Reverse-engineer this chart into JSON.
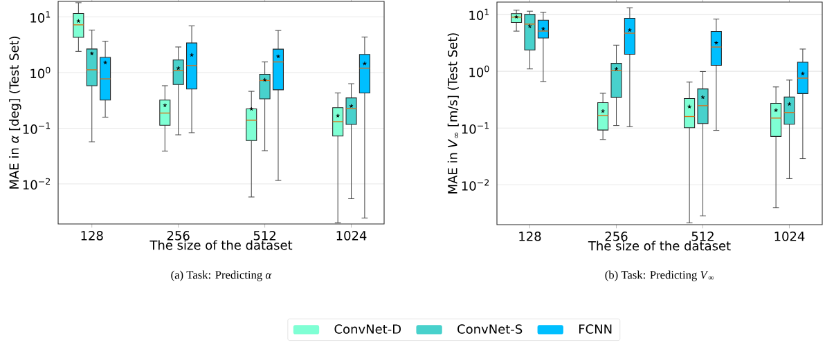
{
  "chart_data": [
    {
      "type": "box",
      "title": "(a) Task: Predicting *α*",
      "xlabel": "The size of the dataset",
      "ylabel": "MAE in *α* [deg] (Test Set)",
      "categories": [
        "128",
        "256",
        "512",
        "1024"
      ],
      "log": true,
      "grid": "y",
      "legend": "bottom",
      "ylim": [
        0.0019,
        19
      ],
      "yticks": [
        {
          "value": 0.01,
          "label": "10$^{−2}$"
        },
        {
          "value": 0.1,
          "label": "10$^{−1}$"
        },
        {
          "value": 1,
          "label": "10$^{0}$"
        },
        {
          "value": 10,
          "label": "10$^{1}$"
        }
      ],
      "series": [
        {
          "name": "ConvNet-D",
          "color": "#7fffd4",
          "boxes": [
            {
              "low": 2.4,
              "q1": 4.3,
              "median": 7.2,
              "q3": 11.5,
              "high": 18,
              "mean": 8.4
            },
            {
              "low": 0.0387,
              "q1": 0.113,
              "median": 0.187,
              "q3": 0.32,
              "high": 0.58,
              "mean": 0.258
            },
            {
              "low": 0.0058,
              "q1": 0.06,
              "median": 0.139,
              "q3": 0.222,
              "high": 0.46,
              "mean": 0.222
            },
            {
              "low": 0.002,
              "q1": 0.0725,
              "median": 0.131,
              "q3": 0.234,
              "high": 0.43,
              "mean": 0.168
            }
          ]
        },
        {
          "name": "ConvNet-S",
          "color": "#48d1cc",
          "boxes": [
            {
              "low": 0.057,
              "q1": 0.58,
              "median": 1.12,
              "q3": 2.65,
              "high": 5.8,
              "mean": 2.2
            },
            {
              "low": 0.076,
              "q1": 0.61,
              "median": 1.08,
              "q3": 1.68,
              "high": 2.88,
              "mean": 1.2
            },
            {
              "low": 0.0394,
              "q1": 0.336,
              "median": 0.72,
              "q3": 0.93,
              "high": 1.55,
              "mean": 0.74
            },
            {
              "low": 0.0054,
              "q1": 0.117,
              "median": 0.224,
              "q3": 0.35,
              "high": 0.63,
              "mean": 0.25
            }
          ]
        },
        {
          "name": "FCNN",
          "color": "#00bfff",
          "boxes": [
            {
              "low": 0.158,
              "q1": 0.32,
              "median": 0.77,
              "q3": 1.87,
              "high": 3.65,
              "mean": 1.51
            },
            {
              "low": 0.083,
              "q1": 0.506,
              "median": 1.33,
              "q3": 3.4,
              "high": 6.9,
              "mean": 2.07
            },
            {
              "low": 0.0115,
              "q1": 0.49,
              "median": 1.55,
              "q3": 2.63,
              "high": 5.7,
              "mean": 1.95
            },
            {
              "low": 0.00243,
              "q1": 0.43,
              "median": 1.2,
              "q3": 2.11,
              "high": 4.34,
              "mean": 1.45
            }
          ]
        }
      ]
    },
    {
      "type": "box",
      "title": "(b) Task: Predicting *V*$_{∞}$",
      "xlabel": "The size of the dataset",
      "ylabel": "MAE in *V*$_{∞}$ [m/s] (Test Set)",
      "categories": [
        "128",
        "256",
        "512",
        "1024"
      ],
      "log": true,
      "grid": "y",
      "ylim": [
        0.002,
        16.5
      ],
      "yticks": [
        {
          "value": 0.01,
          "label": "10$^{−2}$"
        },
        {
          "value": 0.1,
          "label": "10$^{−1}$"
        },
        {
          "value": 1,
          "label": "10$^{0}$"
        },
        {
          "value": 10,
          "label": "10$^{1}$"
        }
      ],
      "series": [
        {
          "color": "#7fffd4",
          "boxes": [
            {
              "low": 5.08,
              "q1": 7.24,
              "median": 8.95,
              "q3": 10.3,
              "high": 11.9,
              "mean": 9.1
            },
            {
              "low": 0.063,
              "q1": 0.0925,
              "median": 0.165,
              "q3": 0.28,
              "high": 0.41,
              "mean": 0.199
            },
            {
              "low": 0.00215,
              "q1": 0.1016,
              "median": 0.16,
              "q3": 0.331,
              "high": 0.645,
              "mean": 0.239
            },
            {
              "low": 0.00396,
              "q1": 0.0713,
              "median": 0.15,
              "q3": 0.272,
              "high": 0.53,
              "mean": 0.206
            }
          ]
        },
        {
          "color": "#48d1cc",
          "boxes": [
            {
              "low": 1.1,
              "q1": 2.37,
              "median": 6.76,
              "q3": 10,
              "high": 11.4,
              "mean": 6.2
            },
            {
              "low": 0.111,
              "q1": 0.347,
              "median": 1.03,
              "q3": 1.38,
              "high": 2.88,
              "mean": 1.1
            },
            {
              "low": 0.00286,
              "q1": 0.12,
              "median": 0.248,
              "q3": 0.489,
              "high": 0.99,
              "mean": 0.35
            },
            {
              "low": 0.0129,
              "q1": 0.117,
              "median": 0.188,
              "q3": 0.352,
              "high": 0.7,
              "mean": 0.265
            }
          ]
        },
        {
          "color": "#00bfff",
          "boxes": [
            {
              "low": 0.66,
              "q1": 3.85,
              "median": 5.1,
              "q3": 7.9,
              "high": 10.9,
              "mean": 5.6
            },
            {
              "low": 0.106,
              "q1": 1.99,
              "median": 4.68,
              "q3": 8.55,
              "high": 13.1,
              "mean": 5.3
            },
            {
              "low": 0.0912,
              "q1": 1.27,
              "median": 2.67,
              "q3": 5.03,
              "high": 8.3,
              "mean": 3.16
            },
            {
              "low": 0.029,
              "q1": 0.405,
              "median": 0.757,
              "q3": 1.44,
              "high": 2.46,
              "mean": 0.91
            }
          ]
        }
      ]
    }
  ]
}
